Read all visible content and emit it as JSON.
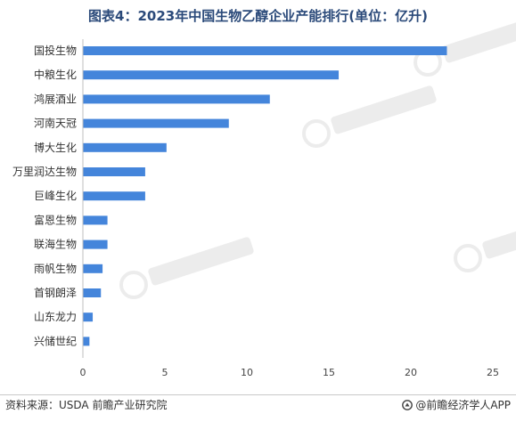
{
  "header": {
    "title": "图表4：2023年中国生物乙醇企业产能排行(单位：亿升)"
  },
  "footer": {
    "source": "资料来源：USDA 前瞻产业研究院",
    "brand": "@前瞻经济学人APP",
    "brand_icon": "qianzhan-logo-icon"
  },
  "colors": {
    "bar": "#4485db",
    "axis": "#bfbfbf",
    "title": "#2b4a7a"
  },
  "chart_data": {
    "type": "bar",
    "orientation": "horizontal",
    "title": "图表4：2023年中国生物乙醇企业产能排行(单位：亿升)",
    "xlabel": "",
    "ylabel": "",
    "xlim": [
      0,
      25
    ],
    "xticks": [
      0,
      5,
      10,
      15,
      20,
      25
    ],
    "grid": false,
    "categories": [
      "国投生物",
      "中粮生化",
      "鸿展酒业",
      "河南天冠",
      "博大生化",
      "万里润达生物",
      "巨峰生化",
      "富恩生物",
      "联海生物",
      "雨帆生物",
      "首钢朗泽",
      "山东龙力",
      "兴储世纪"
    ],
    "values": [
      22.2,
      15.6,
      11.4,
      8.9,
      5.1,
      3.8,
      3.8,
      1.5,
      1.5,
      1.2,
      1.1,
      0.6,
      0.4
    ]
  }
}
